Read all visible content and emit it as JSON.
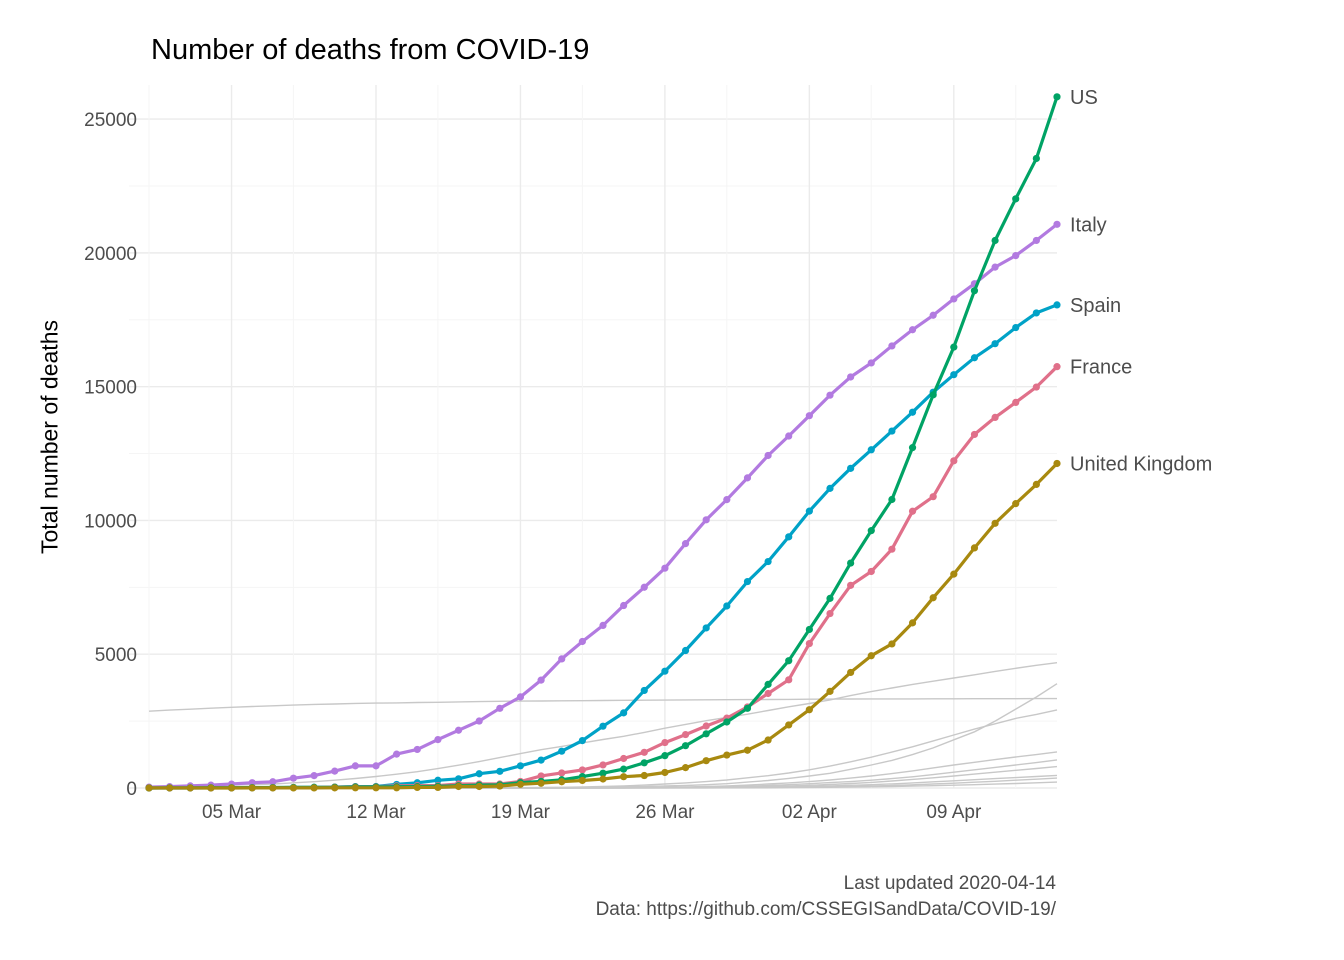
{
  "chart_data": {
    "type": "line",
    "title": "Number of deaths from COVID-19",
    "xlabel": "",
    "ylabel": "Total number of deaths",
    "x_dates": [
      "2020-03-01",
      "2020-03-02",
      "2020-03-03",
      "2020-03-04",
      "2020-03-05",
      "2020-03-06",
      "2020-03-07",
      "2020-03-08",
      "2020-03-09",
      "2020-03-10",
      "2020-03-11",
      "2020-03-12",
      "2020-03-13",
      "2020-03-14",
      "2020-03-15",
      "2020-03-16",
      "2020-03-17",
      "2020-03-18",
      "2020-03-19",
      "2020-03-20",
      "2020-03-21",
      "2020-03-22",
      "2020-03-23",
      "2020-03-24",
      "2020-03-25",
      "2020-03-26",
      "2020-03-27",
      "2020-03-28",
      "2020-03-29",
      "2020-03-30",
      "2020-03-31",
      "2020-04-01",
      "2020-04-02",
      "2020-04-03",
      "2020-04-04",
      "2020-04-05",
      "2020-04-06",
      "2020-04-07",
      "2020-04-08",
      "2020-04-09",
      "2020-04-10",
      "2020-04-11",
      "2020-04-12",
      "2020-04-13",
      "2020-04-14"
    ],
    "x_ticks": [
      {
        "date": "2020-03-05",
        "label": "05 Mar"
      },
      {
        "date": "2020-03-12",
        "label": "12 Mar"
      },
      {
        "date": "2020-03-19",
        "label": "19 Mar"
      },
      {
        "date": "2020-03-26",
        "label": "26 Mar"
      },
      {
        "date": "2020-04-02",
        "label": "02 Apr"
      },
      {
        "date": "2020-04-09",
        "label": "09 Apr"
      }
    ],
    "xlim": [
      "2020-02-29",
      "2020-04-14"
    ],
    "ylim": [
      0,
      25000
    ],
    "y_ticks": [
      0,
      5000,
      10000,
      15000,
      20000,
      25000
    ],
    "grid": true,
    "legend": "direct labels at line ends",
    "series": [
      {
        "name": "Italy",
        "color": "#b27ae0",
        "values": [
          34,
          52,
          79,
          107,
          148,
          197,
          233,
          366,
          463,
          631,
          827,
          827,
          1266,
          1441,
          1809,
          2158,
          2503,
          2978,
          3405,
          4032,
          4825,
          5476,
          6077,
          6820,
          7503,
          8215,
          9134,
          10023,
          10779,
          11591,
          12428,
          13155,
          13915,
          14681,
          15362,
          15887,
          16523,
          17127,
          17669,
          18279,
          18849,
          19468,
          19899,
          20465,
          21067
        ]
      },
      {
        "name": "Spain",
        "color": "#00a2c7",
        "values": [
          0,
          0,
          1,
          2,
          3,
          5,
          10,
          17,
          28,
          35,
          54,
          55,
          133,
          195,
          289,
          342,
          533,
          623,
          830,
          1043,
          1375,
          1772,
          2311,
          2808,
          3647,
          4365,
          5138,
          5982,
          6803,
          7716,
          8464,
          9387,
          10348,
          11198,
          11947,
          12641,
          13341,
          14045,
          14792,
          15447,
          16081,
          16606,
          17209,
          17756,
          18056
        ]
      },
      {
        "name": "France",
        "color": "#e0708a",
        "values": [
          2,
          3,
          4,
          4,
          6,
          9,
          11,
          19,
          19,
          33,
          48,
          48,
          79,
          91,
          91,
          149,
          149,
          149,
          244,
          451,
          563,
          676,
          862,
          1102,
          1333,
          1698,
          1997,
          2317,
          2611,
          3030,
          3532,
          4043,
          5398,
          6520,
          7574,
          8093,
          8926,
          10343,
          10887,
          12228,
          13215,
          13851,
          14412,
          14986,
          15748
        ]
      },
      {
        "name": "US",
        "color": "#00a365",
        "values": [
          1,
          6,
          7,
          11,
          12,
          14,
          17,
          21,
          22,
          28,
          36,
          40,
          47,
          54,
          63,
          85,
          108,
          118,
          200,
          244,
          307,
          427,
          552,
          706,
          942,
          1209,
          1581,
          2026,
          2467,
          2978,
          3873,
          4757,
          5926,
          7087,
          8407,
          9619,
          10783,
          12722,
          14695,
          16478,
          18586,
          20463,
          22020,
          23529,
          25832
        ]
      },
      {
        "name": "United Kingdom",
        "color": "#a8890f",
        "values": [
          0,
          0,
          0,
          0,
          1,
          2,
          2,
          3,
          4,
          6,
          8,
          8,
          8,
          21,
          21,
          56,
          56,
          72,
          138,
          178,
          234,
          282,
          336,
          423,
          466,
          580,
          761,
          1021,
          1231,
          1411,
          1793,
          2357,
          2926,
          3611,
          4320,
          4943,
          5385,
          6171,
          7111,
          7993,
          8974,
          9892,
          10629,
          11347,
          12129
        ]
      }
    ],
    "background_series_color": "#c8c8c8",
    "background_series": [
      [
        2870,
        2912,
        2946,
        2984,
        3015,
        3045,
        3073,
        3100,
        3123,
        3140,
        3162,
        3173,
        3180,
        3194,
        3204,
        3218,
        3231,
        3242,
        3249,
        3253,
        3259,
        3261,
        3270,
        3277,
        3281,
        3285,
        3292,
        3295,
        3300,
        3304,
        3308,
        3312,
        3318,
        3322,
        3326,
        3330,
        3331,
        3331,
        3333,
        3335,
        3336,
        3338,
        3339,
        3341,
        3342
      ],
      [
        54,
        66,
        77,
        92,
        107,
        124,
        145,
        194,
        237,
        291,
        354,
        429,
        514,
        611,
        724,
        853,
        988,
        1135,
        1284,
        1433,
        1556,
        1685,
        1812,
        1934,
        2077,
        2234,
        2378,
        2517,
        2640,
        2757,
        2898,
        3036,
        3160,
        3294,
        3452,
        3603,
        3739,
        3872,
        3993,
        4110,
        4232,
        4357,
        4474,
        4585,
        4683
      ],
      [
        0,
        0,
        0,
        0,
        0,
        0,
        0,
        0,
        0,
        0,
        0,
        0,
        1,
        1,
        2,
        2,
        3,
        4,
        6,
        10,
        15,
        22,
        30,
        47,
        58,
        75,
        95,
        125,
        160,
        220,
        280,
        360,
        450,
        550,
        700,
        860,
        1030,
        1250,
        1500,
        1800,
        2100,
        2500,
        2950,
        3400,
        3900
      ],
      [
        0,
        0,
        0,
        0,
        0,
        0,
        0,
        0,
        0,
        0,
        0,
        0,
        1,
        1,
        2,
        3,
        4,
        8,
        12,
        18,
        28,
        38,
        55,
        80,
        110,
        150,
        190,
        240,
        300,
        380,
        460,
        560,
        680,
        820,
        980,
        1150,
        1340,
        1540,
        1760,
        1980,
        2200,
        2400,
        2600,
        2750,
        2920
      ],
      [
        0,
        0,
        0,
        0,
        0,
        0,
        0,
        0,
        0,
        0,
        0,
        0,
        0,
        0,
        0,
        0,
        0,
        0,
        1,
        2,
        3,
        5,
        8,
        12,
        18,
        25,
        40,
        55,
        80,
        110,
        150,
        190,
        240,
        300,
        370,
        450,
        540,
        640,
        750,
        860,
        960,
        1060,
        1160,
        1250,
        1350
      ],
      [
        0,
        0,
        0,
        0,
        0,
        0,
        0,
        0,
        0,
        0,
        0,
        0,
        0,
        0,
        0,
        0,
        0,
        0,
        0,
        1,
        2,
        3,
        5,
        8,
        12,
        18,
        25,
        35,
        50,
        70,
        95,
        125,
        160,
        200,
        240,
        290,
        350,
        420,
        500,
        590,
        680,
        770,
        860,
        950,
        1050
      ],
      [
        0,
        0,
        0,
        0,
        0,
        0,
        0,
        0,
        0,
        0,
        0,
        0,
        0,
        0,
        0,
        0,
        0,
        0,
        0,
        0,
        1,
        2,
        3,
        5,
        8,
        12,
        16,
        22,
        30,
        40,
        55,
        75,
        100,
        130,
        170,
        210,
        260,
        320,
        380,
        450,
        520,
        590,
        660,
        730,
        800
      ],
      [
        0,
        0,
        0,
        0,
        0,
        0,
        0,
        0,
        0,
        0,
        0,
        0,
        0,
        0,
        0,
        0,
        0,
        0,
        0,
        0,
        0,
        1,
        2,
        3,
        5,
        7,
        10,
        14,
        19,
        26,
        35,
        47,
        60,
        78,
        100,
        125,
        155,
        190,
        230,
        270,
        310,
        350,
        390,
        430,
        470
      ],
      [
        0,
        0,
        0,
        0,
        0,
        0,
        0,
        0,
        0,
        0,
        0,
        0,
        0,
        0,
        0,
        0,
        0,
        0,
        0,
        0,
        0,
        0,
        1,
        2,
        3,
        4,
        6,
        8,
        11,
        15,
        20,
        27,
        35,
        45,
        58,
        75,
        95,
        120,
        150,
        180,
        215,
        250,
        290,
        330,
        370
      ],
      [
        0,
        0,
        0,
        0,
        0,
        0,
        0,
        0,
        0,
        0,
        0,
        0,
        0,
        0,
        0,
        0,
        0,
        0,
        0,
        0,
        0,
        0,
        0,
        1,
        2,
        3,
        4,
        5,
        7,
        9,
        12,
        16,
        21,
        27,
        35,
        45,
        57,
        71,
        87,
        105,
        125,
        147,
        170,
        195,
        220
      ]
    ]
  },
  "caption": {
    "line1": "Last updated 2020-04-14",
    "line2": "Data: https://github.com/CSSEGISandData/COVID-19/"
  }
}
